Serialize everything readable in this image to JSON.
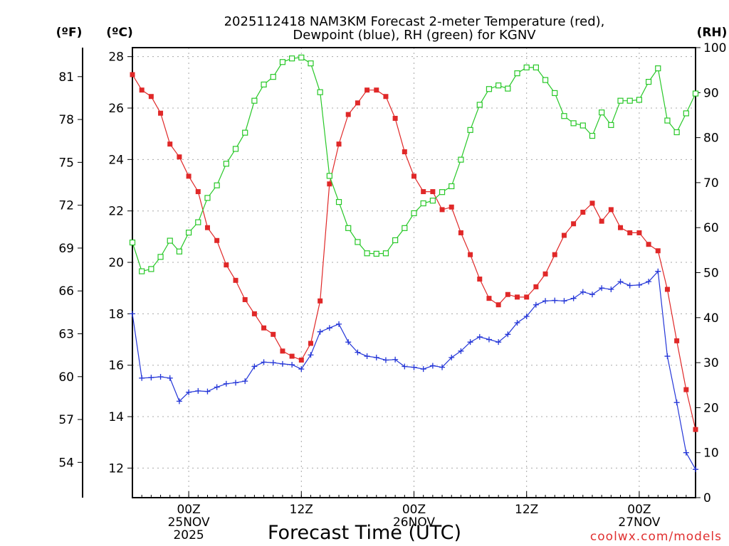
{
  "chart_data": {
    "type": "line",
    "title_lines": [
      "2025112418 NAM3KM Forecast 2-meter Temperature (red),",
      "Dewpoint (blue), RH (green) for KGNV"
    ],
    "xlabel": "Forecast Time (UTC)",
    "credit": "coolwx.com/models",
    "units": {
      "fahrenheit": "(ºF)",
      "celsius": "(ºC)",
      "rh": "(RH)"
    },
    "x_range_hours": [
      0,
      60
    ],
    "celsius_axis": {
      "range": [
        10.85,
        28.35
      ],
      "ticks": [
        12,
        14,
        16,
        18,
        20,
        22,
        24,
        26,
        28
      ]
    },
    "fahrenheit_axis": {
      "ticks": [
        54,
        57,
        60,
        63,
        66,
        69,
        72,
        75,
        78,
        81
      ]
    },
    "rh_axis": {
      "range": [
        0,
        100
      ],
      "ticks": [
        0,
        10,
        20,
        30,
        40,
        50,
        60,
        70,
        80,
        90,
        100
      ]
    },
    "time_ticks": [
      {
        "hour": 6,
        "lines": [
          "00Z",
          "25NOV",
          "2025"
        ]
      },
      {
        "hour": 18,
        "lines": [
          "12Z"
        ]
      },
      {
        "hour": 30,
        "lines": [
          "00Z",
          "26NOV"
        ]
      },
      {
        "hour": 42,
        "lines": [
          "12Z"
        ]
      },
      {
        "hour": 54,
        "lines": [
          "00Z",
          "27NOV"
        ]
      }
    ],
    "hours": [
      0,
      1,
      2,
      3,
      4,
      5,
      6,
      7,
      8,
      9,
      10,
      11,
      12,
      13,
      14,
      15,
      16,
      17,
      18,
      19,
      20,
      21,
      22,
      23,
      24,
      25,
      26,
      27,
      28,
      29,
      30,
      31,
      32,
      33,
      34,
      35,
      36,
      37,
      38,
      39,
      40,
      41,
      42,
      43,
      44,
      45,
      46,
      47,
      48,
      49,
      50,
      51,
      52,
      53,
      54,
      55,
      56,
      57,
      58,
      59,
      60
    ],
    "series": [
      {
        "name": "2-meter Temperature",
        "unit": "C",
        "color": "#e02828",
        "marker": "square",
        "values": [
          27.3,
          26.7,
          26.45,
          25.8,
          24.6,
          24.1,
          23.35,
          22.75,
          21.35,
          20.85,
          19.9,
          19.3,
          18.55,
          18.0,
          17.45,
          17.2,
          16.55,
          16.35,
          16.2,
          16.85,
          18.5,
          23.05,
          24.6,
          25.75,
          26.2,
          26.7,
          26.7,
          26.45,
          25.6,
          24.3,
          23.35,
          22.75,
          22.75,
          22.05,
          22.15,
          21.15,
          20.3,
          19.35,
          18.6,
          18.35,
          18.75,
          18.65,
          18.65,
          19.05,
          19.55,
          20.3,
          21.05,
          21.5,
          21.95,
          22.3,
          21.6,
          22.05,
          21.35,
          21.15,
          21.15,
          20.7,
          20.45,
          18.95,
          16.95,
          15.05,
          13.5
        ]
      },
      {
        "name": "Dewpoint",
        "unit": "C",
        "color": "#2436d8",
        "marker": "plus",
        "values": [
          18.0,
          15.5,
          15.52,
          15.55,
          15.5,
          14.6,
          14.95,
          15.0,
          14.98,
          15.15,
          15.28,
          15.32,
          15.38,
          15.95,
          16.12,
          16.1,
          16.05,
          16.02,
          15.85,
          16.4,
          17.3,
          17.45,
          17.6,
          16.9,
          16.5,
          16.35,
          16.3,
          16.2,
          16.22,
          15.95,
          15.92,
          15.85,
          15.98,
          15.92,
          16.3,
          16.55,
          16.9,
          17.1,
          17.0,
          16.9,
          17.2,
          17.65,
          17.9,
          18.35,
          18.5,
          18.52,
          18.5,
          18.6,
          18.85,
          18.75,
          19.0,
          18.95,
          19.25,
          19.1,
          19.12,
          19.25,
          19.65,
          16.35,
          14.55,
          12.6,
          11.95
        ]
      },
      {
        "name": "RH",
        "unit": "%",
        "color": "#28c828",
        "marker": "open-square",
        "values": [
          56.7,
          50.3,
          50.8,
          53.5,
          57.1,
          54.7,
          58.9,
          61.2,
          66.6,
          69.4,
          74.2,
          77.5,
          81.1,
          88.2,
          91.8,
          93.5,
          96.8,
          97.6,
          97.8,
          96.5,
          90.1,
          71.5,
          65.7,
          59.9,
          56.8,
          54.3,
          54.2,
          54.3,
          57.2,
          59.9,
          63.2,
          65.4,
          66.0,
          67.9,
          69.2,
          75.1,
          81.7,
          87.3,
          90.8,
          91.6,
          90.9,
          94.3,
          95.6,
          95.6,
          92.8,
          89.9,
          84.8,
          83.2,
          82.7,
          80.4,
          85.6,
          82.8,
          88.2,
          88.2,
          88.4,
          92.4,
          95.4,
          83.8,
          81.2,
          85.4,
          89.8
        ]
      }
    ]
  }
}
